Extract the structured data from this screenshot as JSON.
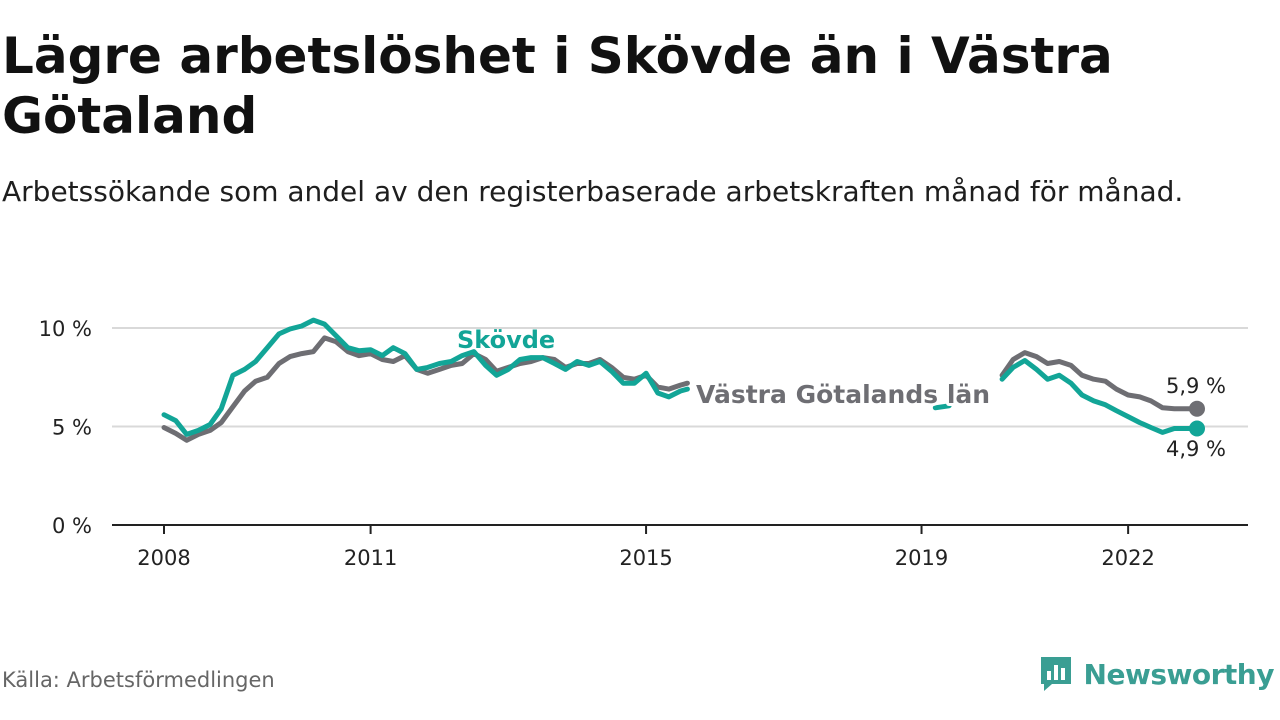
{
  "title": "Lägre arbetslöshet i Skövde än i Västra Götaland",
  "subtitle": "Arbetssökande som andel av den registerbaserade arbetskraften månad för månad.",
  "source": "Källa: Arbetsförmedlingen",
  "brand": {
    "name": "Newsworthy",
    "icon": "newsworthy-logo-icon"
  },
  "colors": {
    "skovde": "#12a597",
    "region": "#6e6e73",
    "grid": "#d9d9d9",
    "axis": "#222222",
    "brand": "#3a9e93"
  },
  "chart_data": {
    "type": "line",
    "title": "Lägre arbetslöshet i Skövde än i Västra Götaland",
    "xlabel": "",
    "ylabel": "",
    "ylim": [
      0,
      10
    ],
    "xlim": [
      2008,
      2023
    ],
    "y_ticks": [
      0,
      5,
      10
    ],
    "y_tick_labels": [
      "0 %",
      "5 %",
      "10 %"
    ],
    "x_ticks": [
      2008,
      2011,
      2015,
      2019,
      2022
    ],
    "x_tick_labels": [
      "2008",
      "2011",
      "2015",
      "2019",
      "2022"
    ],
    "series": [
      {
        "name": "Västra Götalands län",
        "color": "#6e6e73",
        "label": "Västra Götalands län",
        "end_label": "5,9 %",
        "segments": [
          [
            [
              2008.0,
              4.95
            ],
            [
              2008.17,
              4.65
            ],
            [
              2008.33,
              4.3
            ],
            [
              2008.5,
              4.6
            ],
            [
              2008.67,
              4.8
            ],
            [
              2008.83,
              5.2
            ],
            [
              2009.0,
              6.0
            ],
            [
              2009.17,
              6.8
            ],
            [
              2009.33,
              7.3
            ],
            [
              2009.5,
              7.5
            ],
            [
              2009.67,
              8.2
            ],
            [
              2009.83,
              8.55
            ],
            [
              2010.0,
              8.7
            ],
            [
              2010.17,
              8.8
            ],
            [
              2010.33,
              9.5
            ],
            [
              2010.5,
              9.3
            ],
            [
              2010.67,
              8.8
            ],
            [
              2010.83,
              8.6
            ],
            [
              2011.0,
              8.7
            ],
            [
              2011.17,
              8.4
            ],
            [
              2011.33,
              8.3
            ],
            [
              2011.5,
              8.6
            ],
            [
              2011.67,
              7.9
            ],
            [
              2011.83,
              7.7
            ],
            [
              2012.0,
              7.9
            ],
            [
              2012.17,
              8.1
            ],
            [
              2012.33,
              8.2
            ],
            [
              2012.5,
              8.7
            ],
            [
              2012.67,
              8.4
            ],
            [
              2012.83,
              7.8
            ],
            [
              2013.0,
              8.0
            ],
            [
              2013.17,
              8.2
            ],
            [
              2013.33,
              8.3
            ],
            [
              2013.5,
              8.5
            ],
            [
              2013.67,
              8.4
            ],
            [
              2013.83,
              8.0
            ],
            [
              2014.0,
              8.2
            ],
            [
              2014.17,
              8.2
            ],
            [
              2014.33,
              8.4
            ],
            [
              2014.5,
              8.0
            ],
            [
              2014.67,
              7.5
            ],
            [
              2014.83,
              7.4
            ],
            [
              2015.0,
              7.6
            ],
            [
              2015.17,
              7.0
            ],
            [
              2015.33,
              6.9
            ],
            [
              2015.5,
              7.1
            ],
            [
              2015.6,
              7.2
            ]
          ],
          [
            [
              2020.17,
              7.6
            ],
            [
              2020.33,
              8.4
            ],
            [
              2020.5,
              8.75
            ],
            [
              2020.67,
              8.55
            ],
            [
              2020.83,
              8.2
            ],
            [
              2021.0,
              8.3
            ],
            [
              2021.17,
              8.1
            ],
            [
              2021.33,
              7.6
            ],
            [
              2021.5,
              7.4
            ],
            [
              2021.67,
              7.3
            ],
            [
              2021.83,
              6.9
            ],
            [
              2022.0,
              6.6
            ],
            [
              2022.17,
              6.5
            ],
            [
              2022.33,
              6.3
            ],
            [
              2022.5,
              5.95
            ],
            [
              2022.67,
              5.9
            ],
            [
              2022.83,
              5.9
            ],
            [
              2023.0,
              5.9
            ]
          ]
        ]
      },
      {
        "name": "Skövde",
        "color": "#12a597",
        "label": "Skövde",
        "end_label": "4,9 %",
        "segments": [
          [
            [
              2008.0,
              5.6
            ],
            [
              2008.17,
              5.3
            ],
            [
              2008.33,
              4.6
            ],
            [
              2008.5,
              4.8
            ],
            [
              2008.67,
              5.1
            ],
            [
              2008.83,
              5.9
            ],
            [
              2009.0,
              7.6
            ],
            [
              2009.17,
              7.9
            ],
            [
              2009.33,
              8.3
            ],
            [
              2009.5,
              9.0
            ],
            [
              2009.67,
              9.7
            ],
            [
              2009.83,
              9.95
            ],
            [
              2010.0,
              10.1
            ],
            [
              2010.17,
              10.4
            ],
            [
              2010.33,
              10.2
            ],
            [
              2010.5,
              9.6
            ],
            [
              2010.67,
              9.0
            ],
            [
              2010.83,
              8.85
            ],
            [
              2011.0,
              8.9
            ],
            [
              2011.17,
              8.6
            ],
            [
              2011.33,
              9.0
            ],
            [
              2011.5,
              8.7
            ],
            [
              2011.67,
              7.9
            ],
            [
              2011.83,
              8.0
            ],
            [
              2012.0,
              8.2
            ],
            [
              2012.17,
              8.3
            ],
            [
              2012.33,
              8.6
            ],
            [
              2012.5,
              8.8
            ],
            [
              2012.67,
              8.1
            ],
            [
              2012.83,
              7.6
            ],
            [
              2013.0,
              7.9
            ],
            [
              2013.17,
              8.4
            ],
            [
              2013.33,
              8.5
            ],
            [
              2013.5,
              8.5
            ],
            [
              2013.67,
              8.2
            ],
            [
              2013.83,
              7.9
            ],
            [
              2014.0,
              8.3
            ],
            [
              2014.17,
              8.1
            ],
            [
              2014.33,
              8.3
            ],
            [
              2014.5,
              7.8
            ],
            [
              2014.67,
              7.2
            ],
            [
              2014.83,
              7.2
            ],
            [
              2015.0,
              7.7
            ],
            [
              2015.17,
              6.7
            ],
            [
              2015.33,
              6.5
            ],
            [
              2015.5,
              6.8
            ],
            [
              2015.6,
              6.9
            ]
          ],
          [
            [
              2019.2,
              5.95
            ],
            [
              2019.4,
              6.05
            ]
          ],
          [
            [
              2020.17,
              7.4
            ],
            [
              2020.33,
              8.0
            ],
            [
              2020.5,
              8.35
            ],
            [
              2020.67,
              7.9
            ],
            [
              2020.83,
              7.4
            ],
            [
              2021.0,
              7.6
            ],
            [
              2021.17,
              7.2
            ],
            [
              2021.33,
              6.6
            ],
            [
              2021.5,
              6.3
            ],
            [
              2021.67,
              6.1
            ],
            [
              2021.83,
              5.8
            ],
            [
              2022.0,
              5.5
            ],
            [
              2022.17,
              5.2
            ],
            [
              2022.33,
              4.95
            ],
            [
              2022.5,
              4.7
            ],
            [
              2022.67,
              4.9
            ],
            [
              2022.83,
              4.9
            ],
            [
              2023.0,
              4.9
            ]
          ]
        ]
      }
    ]
  }
}
